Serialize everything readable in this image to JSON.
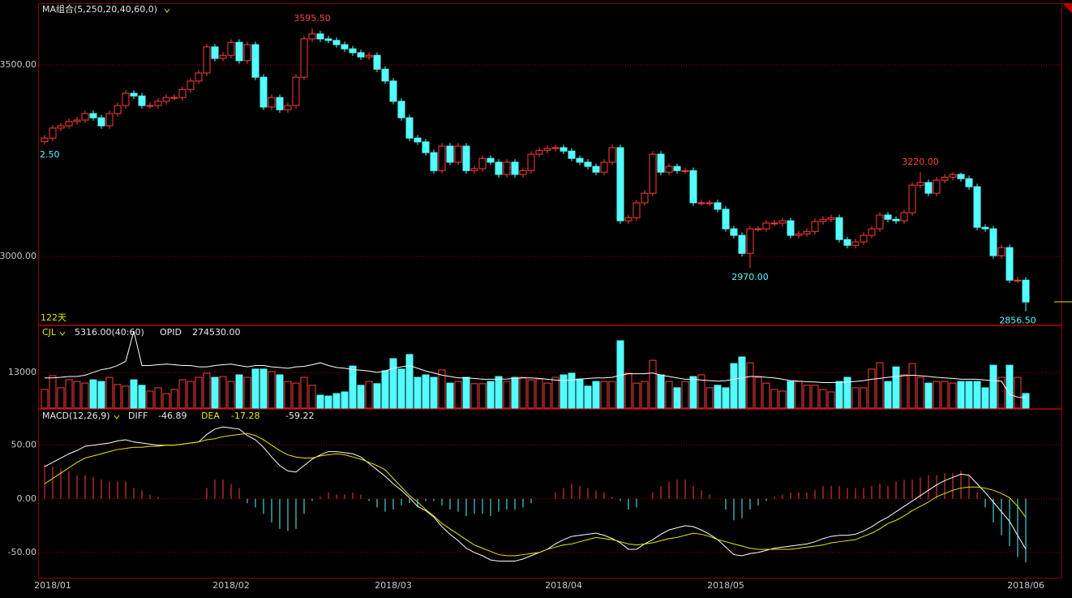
{
  "chart_data": [
    {
      "type": "candlestick",
      "title": "MA组合(5,250,20,40,60,0)",
      "footer": "122天",
      "note": "2.50",
      "ylim": [
        2822,
        3659
      ],
      "yticks": [
        {
          "value": 3000,
          "label": "3000.00"
        },
        {
          "value": 3500,
          "label": "3500.00"
        }
      ],
      "xticks": [
        {
          "value": 1,
          "label": "2018/01"
        },
        {
          "value": 23,
          "label": "2018/02"
        },
        {
          "value": 43,
          "label": "2018/03"
        },
        {
          "value": 64,
          "label": "2018/04"
        },
        {
          "value": 84,
          "label": "2018/05"
        },
        {
          "value": 121,
          "label": "2018/06"
        }
      ],
      "annotations": [
        {
          "index": 33,
          "value": 3595.5,
          "label": "3595.50"
        },
        {
          "index": 87,
          "value": 2970,
          "label": "2970.00"
        },
        {
          "index": 108,
          "value": 3220,
          "label": "3220.00"
        },
        {
          "index": 121,
          "value": 2856.5,
          "label": "2856.50"
        }
      ],
      "up_color": "#ff3c3c",
      "down_color": "#54fcfc",
      "open": [
        3300,
        3309,
        3335,
        3341,
        3352,
        3356,
        3373,
        3362,
        3341,
        3373,
        3394,
        3426,
        3419,
        3394,
        3394,
        3405,
        3415,
        3415,
        3436,
        3458,
        3479,
        3547,
        3517,
        3525,
        3559,
        3511,
        3553,
        3468,
        3390,
        3415,
        3383,
        3394,
        3468,
        3568,
        3581,
        3568,
        3564,
        3553,
        3542,
        3532,
        3521,
        3525,
        3489,
        3458,
        3405,
        3362,
        3309,
        3299,
        3271,
        3224,
        3288,
        3246,
        3288,
        3224,
        3229,
        3256,
        3246,
        3214,
        3246,
        3214,
        3224,
        3267,
        3277,
        3282,
        3284,
        3275,
        3256,
        3246,
        3235,
        3220,
        3246,
        3284,
        3093,
        3101,
        3140,
        3165,
        3267,
        3220,
        3235,
        3224,
        3224,
        3140,
        3140,
        3140,
        3123,
        3072,
        3055,
        3008,
        3072,
        3072,
        3087,
        3087,
        3093,
        3055,
        3059,
        3065,
        3091,
        3097,
        3101,
        3044,
        3029,
        3038,
        3055,
        3072,
        3108,
        3097,
        3093,
        3114,
        3186,
        3193,
        3165,
        3199,
        3207,
        3214,
        3203,
        3182,
        3076,
        3072,
        3002,
        3023,
        2938,
        2938
      ],
      "high": [
        3317,
        3343,
        3349,
        3360,
        3364,
        3381,
        3381,
        3370,
        3381,
        3402,
        3434,
        3434,
        3427,
        3402,
        3413,
        3423,
        3423,
        3444,
        3466,
        3487,
        3555,
        3555,
        3533,
        3567,
        3567,
        3561,
        3561,
        3476,
        3423,
        3423,
        3402,
        3476,
        3576,
        3595.5,
        3589,
        3576,
        3572,
        3561,
        3550,
        3540,
        3533,
        3533,
        3497,
        3466,
        3413,
        3370,
        3317,
        3307,
        3279,
        3296,
        3296,
        3296,
        3296,
        3237,
        3264,
        3264,
        3254,
        3254,
        3254,
        3232,
        3275,
        3285,
        3290,
        3292,
        3292,
        3283,
        3264,
        3254,
        3243,
        3254,
        3292,
        3292,
        3109,
        3148,
        3173,
        3275,
        3275,
        3243,
        3243,
        3232,
        3232,
        3148,
        3148,
        3148,
        3131,
        3080,
        3063,
        3080,
        3080,
        3095,
        3095,
        3101,
        3101,
        3067,
        3073,
        3099,
        3105,
        3109,
        3109,
        3052,
        3046,
        3063,
        3080,
        3116,
        3116,
        3105,
        3122,
        3194,
        3220,
        3201,
        3207,
        3215,
        3219,
        3219,
        3211,
        3190,
        3084,
        3080,
        3031,
        3031,
        2946,
        2946
      ],
      "low": [
        3292,
        3301,
        3327,
        3333,
        3344,
        3348,
        3354,
        3333,
        3333,
        3365,
        3386,
        3411,
        3386,
        3386,
        3386,
        3397,
        3407,
        3407,
        3428,
        3450,
        3471,
        3509,
        3509,
        3517,
        3503,
        3503,
        3460,
        3382,
        3382,
        3375,
        3375,
        3386,
        3460,
        3560,
        3560,
        3556,
        3545,
        3534,
        3524,
        3513,
        3513,
        3481,
        3450,
        3397,
        3354,
        3301,
        3291,
        3263,
        3216,
        3216,
        3238,
        3238,
        3216,
        3216,
        3221,
        3238,
        3206,
        3206,
        3206,
        3206,
        3216,
        3259,
        3269,
        3274,
        3267,
        3248,
        3238,
        3227,
        3212,
        3212,
        3238,
        3085,
        3085,
        3093,
        3132,
        3157,
        3212,
        3212,
        3216,
        3216,
        3132,
        3132,
        3132,
        3115,
        3064,
        3047,
        3000,
        2970,
        3064,
        3064,
        3079,
        3079,
        3047,
        3047,
        3051,
        3057,
        3083,
        3089,
        3036,
        3021,
        3021,
        3030,
        3047,
        3064,
        3089,
        3085,
        3085,
        3106,
        3178,
        3157,
        3157,
        3191,
        3199,
        3195,
        3174,
        3068,
        3064,
        2994,
        2994,
        2930,
        2930,
        2856.5
      ],
      "close": [
        3309,
        3335,
        3341,
        3352,
        3356,
        3373,
        3362,
        3341,
        3373,
        3394,
        3426,
        3419,
        3394,
        3394,
        3405,
        3415,
        3415,
        3436,
        3458,
        3479,
        3547,
        3517,
        3525,
        3559,
        3511,
        3553,
        3468,
        3390,
        3415,
        3383,
        3394,
        3468,
        3568,
        3581,
        3568,
        3564,
        3553,
        3542,
        3532,
        3521,
        3525,
        3489,
        3458,
        3405,
        3362,
        3309,
        3299,
        3271,
        3224,
        3288,
        3246,
        3288,
        3224,
        3229,
        3256,
        3246,
        3214,
        3246,
        3214,
        3224,
        3267,
        3277,
        3282,
        3284,
        3275,
        3256,
        3246,
        3235,
        3220,
        3246,
        3284,
        3093,
        3101,
        3140,
        3165,
        3267,
        3220,
        3235,
        3224,
        3224,
        3140,
        3140,
        3140,
        3123,
        3072,
        3055,
        3008,
        3072,
        3072,
        3087,
        3087,
        3093,
        3055,
        3059,
        3065,
        3091,
        3097,
        3101,
        3044,
        3029,
        3038,
        3055,
        3072,
        3108,
        3097,
        3093,
        3114,
        3186,
        3193,
        3165,
        3199,
        3207,
        3214,
        3203,
        3182,
        3076,
        3072,
        3002,
        3023,
        2938,
        2938,
        2881
      ]
    },
    {
      "type": "bar",
      "title": "CJL",
      "value_text": "5316.00(40:60)",
      "extra_name": "OPID",
      "extra_value": "274530.00",
      "ylim": [
        0,
        29800
      ],
      "yticks": [
        13000
      ],
      "line_color": "#ffffff",
      "values": [
        6800,
        11800,
        7400,
        10300,
        9700,
        9100,
        10300,
        9700,
        11200,
        8600,
        8000,
        10300,
        8300,
        6200,
        7400,
        5300,
        6800,
        10300,
        9700,
        11200,
        12700,
        11200,
        11500,
        9700,
        12100,
        11200,
        14200,
        14200,
        13300,
        12100,
        9700,
        9100,
        11200,
        8300,
        4700,
        4400,
        5300,
        5900,
        15300,
        8300,
        9700,
        8900,
        13600,
        18000,
        14200,
        19500,
        11200,
        12100,
        11200,
        13900,
        9100,
        9700,
        11200,
        8900,
        8900,
        9700,
        11500,
        9700,
        11200,
        11200,
        10300,
        10600,
        9100,
        11200,
        12100,
        12700,
        10600,
        8000,
        9700,
        9700,
        9700,
        24500,
        12700,
        9100,
        9700,
        17400,
        12100,
        9700,
        7400,
        9700,
        11500,
        12100,
        7400,
        8300,
        7400,
        16200,
        18600,
        16500,
        11200,
        9100,
        6800,
        6200,
        9700,
        9700,
        8300,
        8300,
        6800,
        5900,
        9700,
        11200,
        7400,
        7400,
        14200,
        16500,
        9700,
        15000,
        12100,
        16200,
        11200,
        9100,
        9700,
        9700,
        9100,
        9700,
        9700,
        9700,
        7400,
        15600,
        11200,
        15600,
        11200,
        5316
      ],
      "ma": [
        11000,
        11000,
        11200,
        11500,
        11500,
        12000,
        13000,
        14000,
        14500,
        15500,
        17000,
        28000,
        15500,
        15500,
        15800,
        16000,
        15800,
        15500,
        15500,
        15000,
        15000,
        15500,
        15800,
        16000,
        15500,
        15000,
        15500,
        15500,
        15000,
        14800,
        14500,
        15000,
        15200,
        15800,
        16500,
        15500,
        14800,
        14500,
        14000,
        13800,
        13500,
        13000,
        13500,
        14500,
        15000,
        15500,
        14500,
        13500,
        12800,
        12000,
        11500,
        11000,
        11000,
        10800,
        10500,
        10500,
        10500,
        10600,
        10800,
        11000,
        11000,
        10800,
        10500,
        10200,
        10000,
        10200,
        10500,
        10800,
        11000,
        11000,
        11200,
        12000,
        12500,
        12500,
        12500,
        12800,
        12000,
        11500,
        11000,
        10500,
        10500,
        10200,
        10000,
        9800,
        10000,
        10500,
        11000,
        11500,
        11500,
        11200,
        11000,
        10500,
        10000,
        9800,
        9600,
        9500,
        9300,
        9300,
        9300,
        9500,
        9700,
        10000,
        10500,
        10800,
        11200,
        11500,
        11800,
        12000,
        11800,
        11500,
        11200,
        11000,
        10800,
        10500,
        10500,
        10500,
        10200,
        10000,
        9800,
        5000,
        4000,
        3800
      ]
    },
    {
      "type": "macd",
      "title": "MACD(12,26,9)",
      "diff_name": "DIFF",
      "dea_name": "DEA",
      "diff_color": "#ffffff",
      "dea_color": "#e6e600",
      "ylim": [
        -73.5,
        83
      ],
      "yticks": [
        {
          "value": -50,
          "label": "-50.00"
        },
        {
          "value": 0,
          "label": "0.00"
        },
        {
          "value": 50,
          "label": "50.00"
        }
      ],
      "diff": [
        30,
        34,
        38,
        42,
        45,
        49,
        50,
        51,
        52,
        54,
        55,
        53,
        52,
        51,
        50,
        50,
        50,
        51,
        52,
        53,
        60,
        65,
        67,
        66,
        65,
        59,
        55,
        48,
        39,
        31,
        26,
        25,
        31,
        37,
        41,
        44,
        44,
        43,
        42,
        39,
        33,
        27,
        21,
        14,
        8,
        1,
        -7,
        -11,
        -17,
        -26,
        -33,
        -39,
        -46,
        -50,
        -53,
        -57,
        -58,
        -58,
        -58,
        -56,
        -53,
        -50,
        -47,
        -42,
        -38,
        -35,
        -34,
        -33,
        -32,
        -34,
        -37,
        -41,
        -47,
        -47,
        -42,
        -38,
        -33,
        -29,
        -27,
        -25,
        -26,
        -29,
        -33,
        -38,
        -45,
        -52,
        -53,
        -51,
        -50,
        -48,
        -46,
        -45,
        -44,
        -43,
        -42,
        -40,
        -37,
        -35,
        -34,
        -34,
        -33,
        -30,
        -26,
        -21,
        -17,
        -12,
        -7,
        -2,
        3,
        8,
        13,
        17,
        20,
        23,
        22,
        14,
        6,
        -3,
        -12,
        -21,
        -34,
        -46.89
      ],
      "dea": [
        14,
        19,
        24,
        29,
        34,
        38,
        40,
        42,
        44,
        46,
        47,
        48,
        48,
        49,
        49,
        50,
        50,
        51,
        52,
        53,
        55,
        56,
        58,
        59,
        60,
        61,
        59,
        55,
        50,
        45,
        41,
        39,
        38,
        38,
        40,
        41,
        42,
        41,
        39,
        37,
        34,
        31,
        27,
        19,
        11,
        3,
        -3,
        -10,
        -16,
        -23,
        -28,
        -33,
        -38,
        -43,
        -46,
        -49,
        -52,
        -53,
        -53,
        -52,
        -51,
        -50,
        -47,
        -45,
        -43,
        -42,
        -40,
        -38,
        -36,
        -37,
        -38,
        -40,
        -42,
        -43,
        -42,
        -41,
        -39,
        -37,
        -36,
        -34,
        -32,
        -33,
        -35,
        -38,
        -40,
        -42,
        -44,
        -46,
        -47,
        -47,
        -47,
        -47,
        -47,
        -46,
        -45,
        -44,
        -43,
        -41,
        -40,
        -39,
        -38,
        -35,
        -32,
        -28,
        -23,
        -20,
        -16,
        -11,
        -7,
        -3,
        2,
        5,
        8,
        10,
        11,
        11,
        10,
        8,
        5,
        1,
        -7,
        -17.28
      ],
      "macd": [
        32,
        30,
        28,
        26,
        22,
        22,
        20,
        18,
        16,
        16,
        16,
        10,
        8,
        4,
        2,
        0,
        0,
        0,
        0,
        0,
        10,
        18,
        18,
        14,
        10,
        -4,
        -8,
        -14,
        -22,
        -28,
        -30,
        -28,
        -14,
        -2,
        2,
        6,
        4,
        4,
        6,
        4,
        -2,
        -8,
        -12,
        -10,
        -6,
        -4,
        -8,
        -2,
        -2,
        -6,
        -10,
        -12,
        -16,
        -14,
        -14,
        -16,
        -12,
        -10,
        -10,
        -8,
        -4,
        0,
        0,
        6,
        10,
        14,
        12,
        10,
        8,
        6,
        2,
        -2,
        -10,
        -8,
        0,
        6,
        12,
        16,
        18,
        18,
        12,
        8,
        4,
        0,
        -10,
        -20,
        -18,
        -10,
        -6,
        -2,
        2,
        4,
        6,
        6,
        6,
        8,
        12,
        12,
        12,
        10,
        10,
        10,
        12,
        14,
        12,
        16,
        18,
        18,
        20,
        22,
        22,
        24,
        24,
        26,
        22,
        6,
        -8,
        -22,
        -34,
        -44,
        -54,
        -59.22
      ]
    }
  ]
}
